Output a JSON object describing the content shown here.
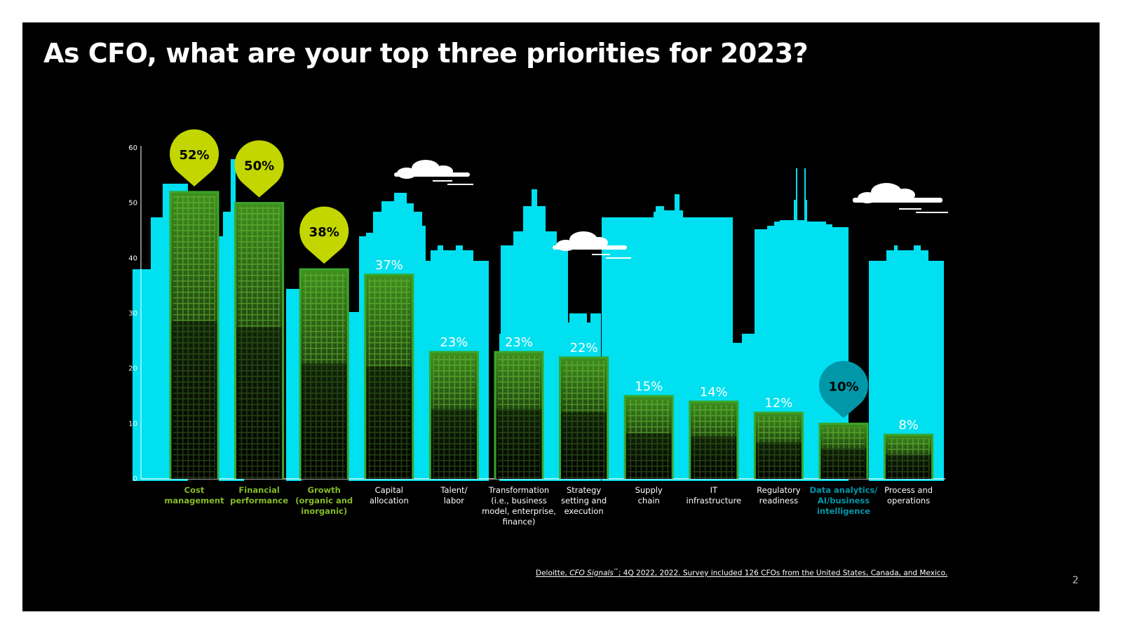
{
  "title": "As CFO, what are your top three priorities for 2023?",
  "source": {
    "prefix": "Deloitte, ",
    "italic": "CFO Signals",
    "sup": "™",
    "suffix": "; 4Q 2022, 2022. Survey included 126 CFOs from the United States, Canada, and Mexico."
  },
  "page_number": "2",
  "colors": {
    "background": "#000000",
    "skyline": "#00e0f0",
    "highlight_green": "#c3d600",
    "teal": "#0097a9",
    "bar_outline": "#3aa62b",
    "green_label": "#86bc25",
    "value_label": "#ffffff",
    "category_label": "#ffffff"
  },
  "chart_data": {
    "type": "bar",
    "title": "As CFO, what are your top three priorities for 2023?",
    "xlabel": "",
    "ylabel": "",
    "ylim": [
      0,
      60
    ],
    "yticks": [
      0,
      10,
      20,
      30,
      40,
      50,
      60
    ],
    "categories": [
      "Cost management",
      "Financial performance",
      "Growth (organic and inorganic)",
      "Capital allocation",
      "Talent/ labor",
      "Transformation (i.e., business model, enterprise, finance)",
      "Strategy setting and execution",
      "Supply chain",
      "IT infrastructure",
      "Regulatory readiness",
      "Data analytics/ AI/business intelligence",
      "Process and operations"
    ],
    "category_lines": [
      [
        "Cost",
        "management"
      ],
      [
        "Financial",
        "performance"
      ],
      [
        "Growth",
        "(organic and",
        "inorganic)"
      ],
      [
        "Capital",
        "allocation"
      ],
      [
        "Talent/",
        "labor"
      ],
      [
        "Transformation",
        "(i.e., business",
        "model, enterprise,",
        "finance)"
      ],
      [
        "Strategy",
        "setting and",
        "execution"
      ],
      [
        "Supply",
        "chain"
      ],
      [
        "IT",
        "infrastructure"
      ],
      [
        "Regulatory",
        "readiness"
      ],
      [
        "Data analytics/",
        "AI/business",
        "intelligence"
      ],
      [
        "Process and",
        "operations"
      ]
    ],
    "values": [
      52,
      50,
      38,
      37,
      23,
      23,
      22,
      15,
      14,
      12,
      10,
      8
    ],
    "value_labels": [
      "52%",
      "50%",
      "38%",
      "37%",
      "23%",
      "23%",
      "22%",
      "15%",
      "14%",
      "12%",
      "10%",
      "8%"
    ],
    "highlight": [
      "green",
      "green",
      "green",
      "none",
      "none",
      "none",
      "none",
      "none",
      "none",
      "none",
      "teal",
      "none"
    ]
  }
}
